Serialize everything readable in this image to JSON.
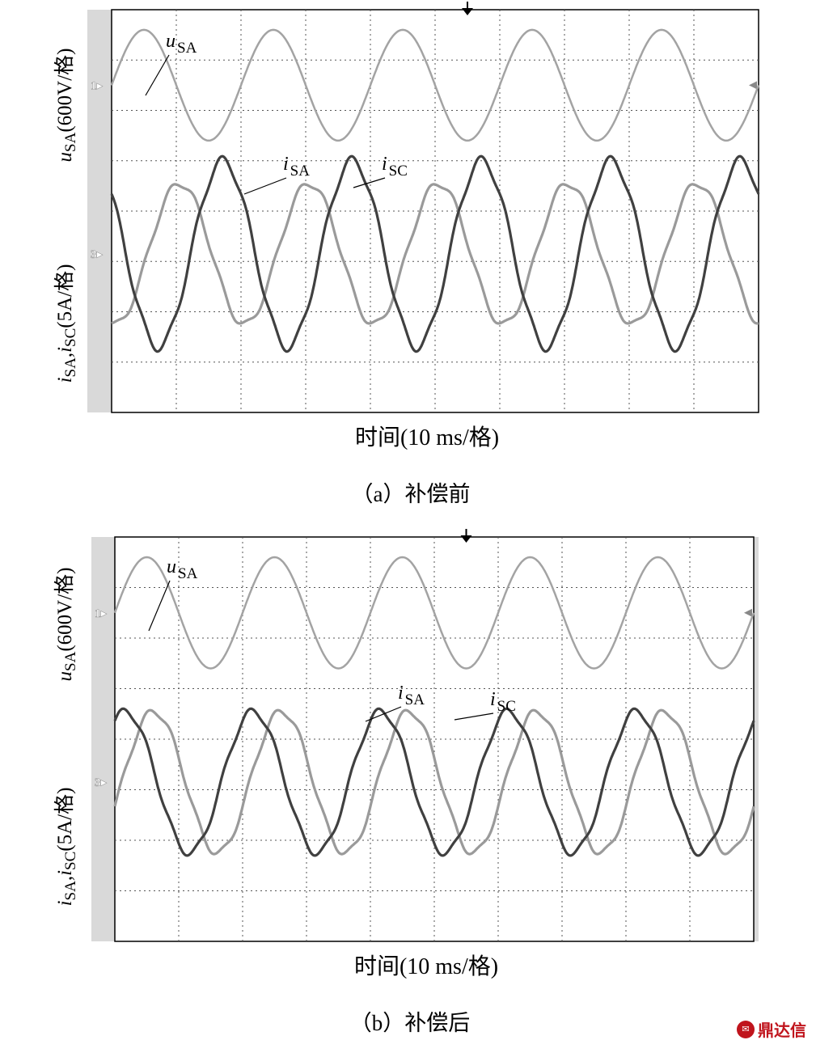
{
  "chart_data": [
    {
      "panel_id": "a",
      "type": "line",
      "caption": "（a）补偿前",
      "x_axis": {
        "label": "时间(10 ms/格)",
        "range_ms": [
          0,
          100
        ],
        "divisions": 10
      },
      "y_axis_top": {
        "label_base": "u",
        "label_sub": "SA",
        "label_unit": "(600V/格)"
      },
      "y_axis_bottom": {
        "label_base_1": "i",
        "label_sub_1": "SA",
        "label_sep": ",",
        "label_base_2": "i",
        "label_sub_2": "SC",
        "label_unit": "(5A/格)"
      },
      "channel_markers": [
        "1",
        "3"
      ],
      "grid": true,
      "series": [
        {
          "name": "uSA",
          "channel": "1",
          "color": "#a3a3a3",
          "frequency_hz": 50,
          "amplitude_div": 1.1,
          "phase_deg": 0
        },
        {
          "name": "iSA",
          "channel": "3",
          "color": "#9a9a9a",
          "frequency_hz": 50,
          "amplitude_div": 1.4,
          "phase_deg": -100
        },
        {
          "name": "iSC",
          "channel": "3",
          "color": "#404040",
          "frequency_hz": 50,
          "amplitude_div": 1.85,
          "phase_deg": 140
        }
      ],
      "annotations": [
        {
          "base": "u",
          "sub": "SA",
          "series": "uSA"
        },
        {
          "base": "i",
          "sub": "SA",
          "series": "iSA"
        },
        {
          "base": "i",
          "sub": "SC",
          "series": "iSC"
        }
      ]
    },
    {
      "panel_id": "b",
      "type": "line",
      "caption": "（b）补偿后",
      "x_axis": {
        "label": "时间(10 ms/格)",
        "range_ms": [
          0,
          100
        ],
        "divisions": 10
      },
      "y_axis_top": {
        "label_base": "u",
        "label_sub": "SA",
        "label_unit": "(600V/格)"
      },
      "y_axis_bottom": {
        "label_base_1": "i",
        "label_sub_1": "SA",
        "label_sep": ",",
        "label_base_2": "i",
        "label_sub_2": "SC",
        "label_unit": "(5A/格)"
      },
      "channel_markers": [
        "1",
        "3"
      ],
      "grid": true,
      "series": [
        {
          "name": "uSA",
          "channel": "1",
          "color": "#a3a3a3",
          "frequency_hz": 50,
          "amplitude_div": 1.1,
          "phase_deg": 0
        },
        {
          "name": "iSA",
          "channel": "3",
          "color": "#9a9a9a",
          "frequency_hz": 50,
          "amplitude_div": 1.4,
          "phase_deg": -20
        },
        {
          "name": "iSC",
          "channel": "3",
          "color": "#404040",
          "frequency_hz": 50,
          "amplitude_div": 1.4,
          "phase_deg": 60
        }
      ],
      "annotations": [
        {
          "base": "u",
          "sub": "SA",
          "series": "uSA"
        },
        {
          "base": "i",
          "sub": "SA",
          "series": "iSA"
        },
        {
          "base": "i",
          "sub": "SC",
          "series": "iSC"
        }
      ]
    }
  ],
  "watermark": {
    "text": "鼎达信",
    "logo_icon": "watermark-logo-icon"
  }
}
